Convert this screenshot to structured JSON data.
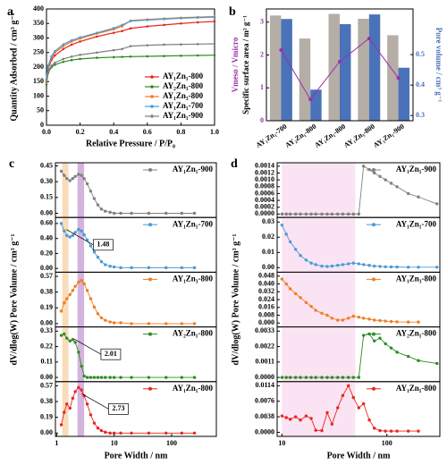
{
  "chart_data": [
    {
      "type": "line",
      "label": "a",
      "xlabel": "Relative Pressure / P/P₀",
      "ylabel": "Quantity Adsorbed / cm³ g⁻¹",
      "x": [
        0.0,
        0.01,
        0.03,
        0.05,
        0.1,
        0.15,
        0.2,
        0.3,
        0.4,
        0.45,
        0.5,
        0.6,
        0.7,
        0.8,
        0.9,
        1.0
      ],
      "xlim": [
        0,
        1
      ],
      "xticks": [
        {
          "value": 0,
          "label": "0.0"
        },
        0.2,
        0.4,
        0.6,
        0.8,
        {
          "value": 1,
          "label": "1.0"
        }
      ],
      "ylim": [
        0,
        400
      ],
      "yticks": [
        0,
        50,
        100,
        150,
        200,
        250,
        300,
        350,
        400
      ],
      "legend": "lower right",
      "series": [
        {
          "name": "AY₁Zn₁-800",
          "color": "#e8251f",
          "values": [
            150,
            195,
            225,
            240,
            262,
            277,
            288,
            305,
            318,
            324,
            333,
            340,
            345,
            350,
            354,
            357
          ]
        },
        {
          "name": "AY₂Zn₁-800",
          "color": "#2e8b22",
          "values": [
            140,
            180,
            200,
            208,
            218,
            224,
            228,
            232,
            234,
            235,
            236,
            237,
            238,
            239,
            240,
            241
          ]
        },
        {
          "name": "AY₁Zn₃-800",
          "color": "#f07d20",
          "values": [
            155,
            200,
            232,
            250,
            272,
            288,
            298,
            315,
            330,
            340,
            360,
            364,
            367,
            370,
            372,
            374
          ]
        },
        {
          "name": "AY₁Zn₁-700",
          "color": "#4a9ad6",
          "values": [
            160,
            205,
            237,
            255,
            278,
            292,
            302,
            318,
            334,
            345,
            358,
            362,
            365,
            368,
            370,
            372
          ]
        },
        {
          "name": "AY₁Zn₁-900",
          "color": "#808080",
          "values": [
            145,
            185,
            205,
            215,
            228,
            236,
            242,
            250,
            258,
            262,
            272,
            275,
            277,
            278,
            279,
            280
          ]
        }
      ]
    },
    {
      "type": "bar",
      "label": "b",
      "ylabel": "Specific surface area / m² g⁻¹",
      "ratio_label": "Vmeso / Vmicro",
      "y2label": "Pore volume / cm³ g⁻¹",
      "categories": [
        "AY₁Zn₁-700",
        "AY₂Zn₁-800",
        "AY₁Zn₁-800",
        "AY₁Zn₃-800",
        "AY₁Zn₁-900"
      ],
      "ylim": [
        0,
        3.4
      ],
      "yticks": [
        0,
        1,
        2,
        3
      ],
      "y2lim": [
        0.283,
        0.65
      ],
      "y2ticks": [
        0.3,
        0.4,
        0.5
      ],
      "series": [
        {
          "kind": "bar",
          "color": "#b5aea6",
          "values": [
            3.2,
            2.5,
            3.25,
            3.1,
            2.6
          ]
        },
        {
          "kind": "bar",
          "color": "#4a72b8",
          "axis": "y2",
          "values": [
            0.617,
            0.385,
            0.6,
            0.632,
            0.457
          ]
        },
        {
          "kind": "line",
          "color": "#9b30a8",
          "values": [
            2.15,
            0.65,
            1.8,
            2.5,
            1.3
          ]
        }
      ]
    },
    {
      "type": "line",
      "label": "c",
      "xlabel": "Pore Width / nm",
      "ylabel": "dV/dlog(W) Pore Volume / cm³ g⁻¹",
      "log_x": true,
      "x": [
        1.2,
        1.35,
        1.5,
        1.7,
        1.9,
        2.1,
        2.4,
        2.7,
        3.0,
        3.4,
        3.9,
        4.5,
        5.2,
        6,
        7,
        8.5,
        10,
        13,
        20,
        40,
        80,
        150,
        250
      ],
      "xlim": [
        0.95,
        600
      ],
      "xticks": [
        1,
        10,
        100
      ],
      "bands": [
        {
          "range": [
            1.25,
            1.6
          ],
          "color": "#f7d3a8"
        },
        {
          "range": [
            2.3,
            3.0
          ],
          "color": "#c9a0d6"
        }
      ],
      "panels": [
        {
          "name": "AY₁Zn₁-900",
          "color": "#808080",
          "ylim": [
            -0.04,
            0.48
          ],
          "yticks": [
            {
              "value": 0,
              "label": "0.00"
            },
            0.15,
            {
              "value": 0.3,
              "label": "0.30"
            },
            0.45
          ],
          "values": [
            0.4,
            0.36,
            0.33,
            0.31,
            0.33,
            0.35,
            0.37,
            0.36,
            0.33,
            0.28,
            0.21,
            0.14,
            0.08,
            0.04,
            0.02,
            0.01,
            0,
            0,
            0,
            0,
            0,
            0,
            0
          ]
        },
        {
          "name": "AY₁Zn₁-700",
          "color": "#4a9ad6",
          "ylim": [
            -0.05,
            0.68
          ],
          "yticks": [
            {
              "value": 0,
              "label": "0.00"
            },
            {
              "value": 0.2,
              "label": "0.20"
            },
            {
              "value": 0.4,
              "label": "0.40"
            },
            {
              "value": 0.6,
              "label": "0.60"
            }
          ],
          "annotation": 1.48,
          "values": [
            0.6,
            0.5,
            0.44,
            0.42,
            0.44,
            0.48,
            0.52,
            0.5,
            0.45,
            0.38,
            0.3,
            0.22,
            0.15,
            0.09,
            0.05,
            0.03,
            0.02,
            0.01,
            0.01,
            0.01,
            0.01,
            0.01,
            0.01
          ]
        },
        {
          "name": "AY₁Zn₃-800",
          "color": "#f07d20",
          "ylim": [
            -0.04,
            0.62
          ],
          "yticks": [
            {
              "value": 0,
              "label": "0.00"
            },
            0.19,
            0.38,
            0.57
          ],
          "values": [
            0.15,
            0.25,
            0.3,
            0.35,
            0.4,
            0.45,
            0.5,
            0.52,
            0.48,
            0.4,
            0.3,
            0.2,
            0.12,
            0.07,
            0.04,
            0.02,
            0.01,
            0.01,
            0,
            0,
            0,
            0,
            0
          ]
        },
        {
          "name": "AY₂Zn₁-800",
          "color": "#2e8b22",
          "ylim": [
            -0.03,
            0.36
          ],
          "yticks": [
            {
              "value": 0,
              "label": "0.00"
            },
            0.11,
            0.22,
            0.33
          ],
          "annotation": 2.01,
          "values": [
            0.3,
            0.31,
            0.28,
            0.26,
            0.27,
            0.25,
            0.18,
            0.08,
            0.01,
            0,
            0,
            0,
            0,
            0,
            0,
            0,
            0,
            0,
            0,
            0,
            0,
            0,
            0
          ]
        },
        {
          "name": "AY₁Zn₁-800",
          "color": "#e8251f",
          "ylim": [
            -0.04,
            0.62
          ],
          "yticks": [
            {
              "value": 0,
              "label": "0.00"
            },
            0.19,
            0.38,
            0.57
          ],
          "annotation": 2.73,
          "values": [
            0.1,
            0.25,
            0.35,
            0.3,
            0.42,
            0.5,
            0.55,
            0.52,
            0.45,
            0.35,
            0.22,
            0.12,
            0.06,
            0.03,
            0.01,
            0,
            0,
            0,
            0,
            0,
            0,
            0,
            0
          ]
        }
      ]
    },
    {
      "type": "line",
      "label": "d",
      "xlabel": "Pore Width / nm",
      "ylabel": "dV/dlog(W) Pore Volume / cm³ g⁻¹",
      "log_x": true,
      "x": [
        10,
        11,
        12,
        13.5,
        15,
        17,
        19,
        21,
        24,
        27,
        30,
        34,
        38,
        43,
        48,
        54,
        60,
        68,
        76,
        86,
        97,
        110,
        125,
        160,
        200,
        300
      ],
      "xlim": [
        9,
        320
      ],
      "xticks": [
        10,
        100
      ],
      "bands": [
        {
          "range": [
            10,
            50
          ],
          "color": "#f9dcef"
        }
      ],
      "panels": [
        {
          "name": "AY₁Zn₁-900",
          "color": "#808080",
          "ylim": [
            -0.0001,
            0.0015
          ],
          "yticks": [
            {
              "value": 0,
              "label": "0.0000"
            },
            0.0002,
            0.0004,
            0.0006,
            0.0008,
            {
              "value": 0.001,
              "label": "0.0010"
            },
            0.0012,
            0.0014
          ],
          "values": [
            0,
            0,
            0,
            0,
            0,
            0,
            0,
            0,
            0,
            0,
            0,
            0,
            0,
            0,
            0,
            0,
            0.0014,
            0.0013,
            0.0012,
            0.0011,
            0.001,
            0.0009,
            0.0008,
            0.0006,
            0.0005,
            0.0003
          ]
        },
        {
          "name": "AY₁Zn₁-700",
          "color": "#4a9ad6",
          "ylim": [
            -0.003,
            0.033
          ],
          "yticks": [
            {
              "value": 0,
              "label": "0.00"
            },
            0.01,
            0.02,
            0.03
          ],
          "values": [
            0.028,
            0.022,
            0.017,
            0.012,
            0.008,
            0.005,
            0.003,
            0.002,
            0.001,
            0.0008,
            0.001,
            0.0015,
            0.002,
            0.0025,
            0.003,
            0.0025,
            0.002,
            0.0015,
            0.001,
            0.0008,
            0.0006,
            0.0005,
            0.0004,
            0.0003,
            0.0003,
            0.0003
          ]
        },
        {
          "name": "AY₁Zn₃-800",
          "color": "#f07d20",
          "ylim": [
            -0.004,
            0.052
          ],
          "yticks": [
            {
              "value": 0,
              "label": "0.000"
            },
            0.008,
            0.016,
            0.024,
            0.032,
            {
              "value": 0.04,
              "label": "0.040"
            },
            0.048
          ],
          "values": [
            0.045,
            0.04,
            0.035,
            0.03,
            0.026,
            0.021,
            0.017,
            0.013,
            0.01,
            0.008,
            0.005,
            0.003,
            0.003,
            0.005,
            0.007,
            0.006,
            0.005,
            0.004,
            0.003,
            0.0025,
            0.002,
            0.0015,
            0.0012,
            0.001,
            0.001,
            null
          ]
        },
        {
          "name": "AY₂Zn₁-800",
          "color": "#2e8b22",
          "ylim": [
            -0.0003,
            0.0036
          ],
          "yticks": [
            {
              "value": 0,
              "label": "0.0000"
            },
            0.0011,
            0.0022,
            0.0033
          ],
          "values": [
            0,
            0,
            0,
            0,
            0,
            0,
            0,
            0,
            0,
            0,
            0,
            0,
            0,
            0,
            0,
            0,
            0.003,
            0.0031,
            0.0026,
            0.0028,
            0.0024,
            0.0021,
            0.0018,
            0.0015,
            0.0012,
            0.001
          ]
        },
        {
          "name": "AY₁Zn₁-800",
          "color": "#e8251f",
          "ylim": [
            -0.001,
            0.0124
          ],
          "yticks": [
            {
              "value": 0,
              "label": "0.0000"
            },
            0.0038,
            0.0076,
            0.0114
          ],
          "values": [
            0.004,
            0.0036,
            0.0032,
            0.0038,
            0.003,
            0.004,
            0.0034,
            0.0005,
            0.0004,
            0.0048,
            0.002,
            0.006,
            0.009,
            0.0114,
            0.0085,
            0.006,
            0.007,
            0.003,
            0.001,
            0.0004,
            0.0003,
            0.0003,
            0.0003,
            0.0003,
            0.0003,
            null
          ]
        }
      ]
    }
  ]
}
